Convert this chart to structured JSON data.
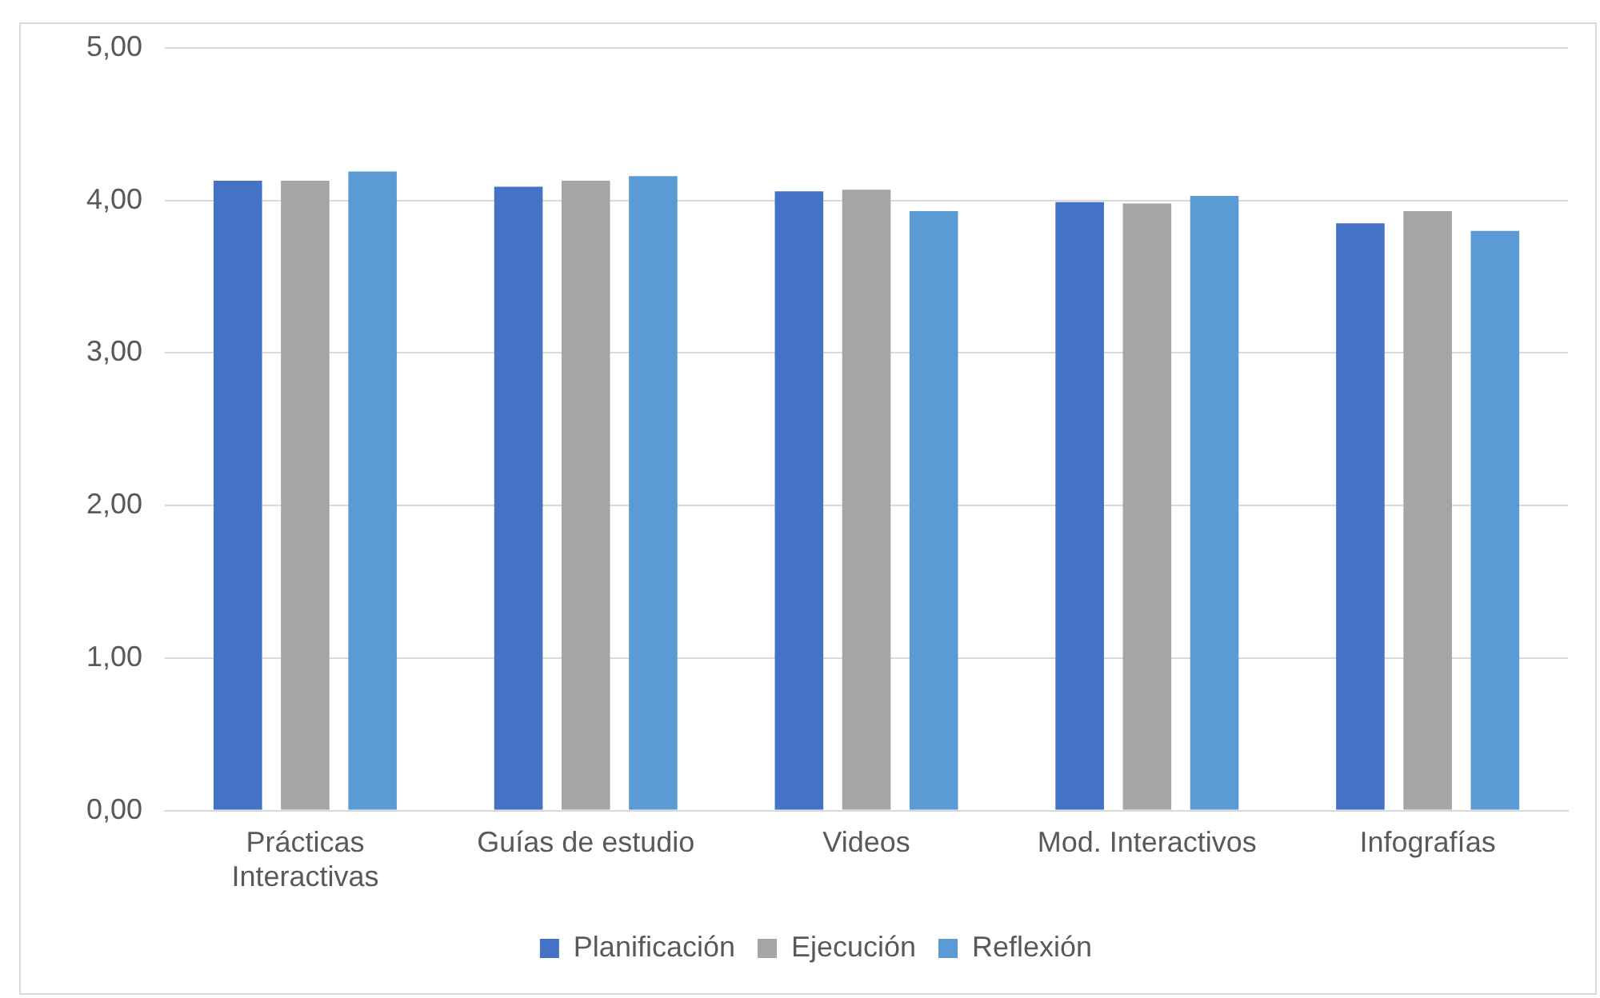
{
  "chart_data": {
    "type": "bar",
    "categories": [
      "Prácticas Interactivas",
      "Guías de estudio",
      "Videos",
      "Mod. Interactivos",
      "Infografías"
    ],
    "series": [
      {
        "name": "Planificación",
        "color": "#4472c4",
        "values": [
          4.13,
          4.09,
          4.06,
          3.99,
          3.85
        ]
      },
      {
        "name": "Ejecución",
        "color": "#a5a5a5",
        "values": [
          4.13,
          4.13,
          4.07,
          3.98,
          3.93
        ]
      },
      {
        "name": "Reflexión",
        "color": "#5b9bd5",
        "values": [
          4.19,
          4.16,
          3.93,
          4.03,
          3.8
        ]
      }
    ],
    "ylim": [
      0,
      5
    ],
    "yticks": [
      {
        "value": 0,
        "label": "0,00"
      },
      {
        "value": 1,
        "label": "1,00"
      },
      {
        "value": 2,
        "label": "2,00"
      },
      {
        "value": 3,
        "label": "3,00"
      },
      {
        "value": 4,
        "label": "4,00"
      },
      {
        "value": 5,
        "label": "5,00"
      }
    ],
    "grid": "y",
    "legend": "bottom"
  }
}
